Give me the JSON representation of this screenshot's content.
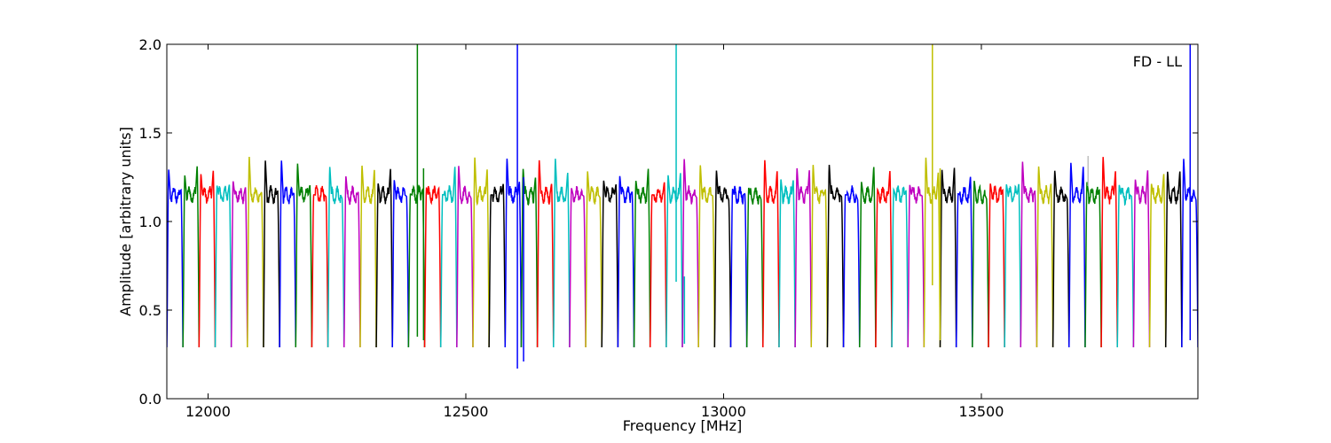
{
  "chart_data": {
    "type": "line",
    "title": "",
    "xlabel": "Frequency [MHz]",
    "ylabel": "Amplitude [arbitrary units]",
    "xlim": [
      11920,
      13920
    ],
    "ylim": [
      0.0,
      2.0
    ],
    "x_ticks": [
      12000,
      12500,
      13000,
      13500
    ],
    "x_tick_labels": [
      "12000",
      "12500",
      "13000",
      "13500"
    ],
    "y_ticks": [
      0.0,
      0.5,
      1.0,
      1.5,
      2.0
    ],
    "y_tick_labels": [
      "0.0",
      "0.5",
      "1.0",
      "1.5",
      "2.0"
    ],
    "annotation": "FD - LL",
    "grid": false,
    "colors": [
      "#0000ff",
      "#008000",
      "#ff0000",
      "#00bfbf",
      "#bf00bf",
      "#bfbf00",
      "#000000"
    ],
    "subband": {
      "count": 64,
      "start": 11920,
      "width": 31.25,
      "edge_level": 0.29,
      "passband_level": 1.15
    },
    "spikes": [
      {
        "x": 12406,
        "ymin": 0.35,
        "ymax": 2.0,
        "color": "#008000"
      },
      {
        "x": 12418,
        "ymin": 0.33,
        "ymax": 1.3,
        "color": "#008000"
      },
      {
        "x": 12600,
        "ymin": 0.17,
        "ymax": 2.0,
        "color": "#0000ff"
      },
      {
        "x": 12612,
        "ymin": 0.21,
        "ymax": 1.25,
        "color": "#0000ff"
      },
      {
        "x": 12908,
        "ymin": 0.66,
        "ymax": 2.0,
        "color": "#00bfbf"
      },
      {
        "x": 12924,
        "ymin": 0.31,
        "ymax": 0.69,
        "color": "#00bfbf"
      },
      {
        "x": 13405,
        "ymin": 0.64,
        "ymax": 2.0,
        "color": "#bfbf00"
      },
      {
        "x": 13420,
        "ymin": 0.33,
        "ymax": 1.3,
        "color": "#bfbf00"
      },
      {
        "x": 13905,
        "ymin": 0.33,
        "ymax": 2.0,
        "color": "#0000ff"
      },
      {
        "x": 13707,
        "ymin": 1.2,
        "ymax": 1.37,
        "color": "#bfbfbf"
      }
    ]
  }
}
